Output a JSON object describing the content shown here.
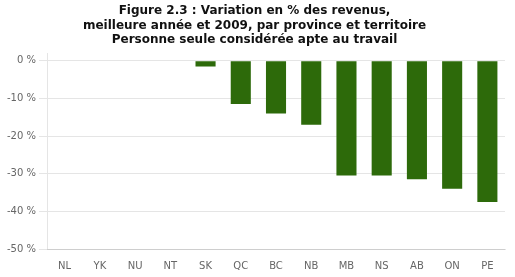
{
  "chart_data": {
    "type": "bar",
    "title": [
      "Figure 2.3 : Variation en % des revenus,",
      "meilleure année et 2009, par province et territoire",
      "Personne seule considérée apte au travail"
    ],
    "categories": [
      "NL",
      "YK",
      "NU",
      "NT",
      "SK",
      "QC",
      "BC",
      "NB",
      "MB",
      "NS",
      "AB",
      "ON",
      "PE"
    ],
    "values": [
      0,
      0,
      0,
      0,
      -1.5,
      -11.5,
      -14.0,
      -17.0,
      -30.5,
      -30.5,
      -31.5,
      -34.0,
      -37.5
    ],
    "color": "#2d6a0a",
    "ylim": [
      -50,
      2
    ],
    "yticks": [
      {
        "value": 0,
        "label": "0 %"
      },
      {
        "value": -10,
        "label": "-10 %"
      },
      {
        "value": -20,
        "label": "-20 %"
      },
      {
        "value": -30,
        "label": "-30 %"
      },
      {
        "value": -40,
        "label": "-40 %"
      },
      {
        "value": -50,
        "label": "-50 %"
      }
    ],
    "grid": true
  }
}
